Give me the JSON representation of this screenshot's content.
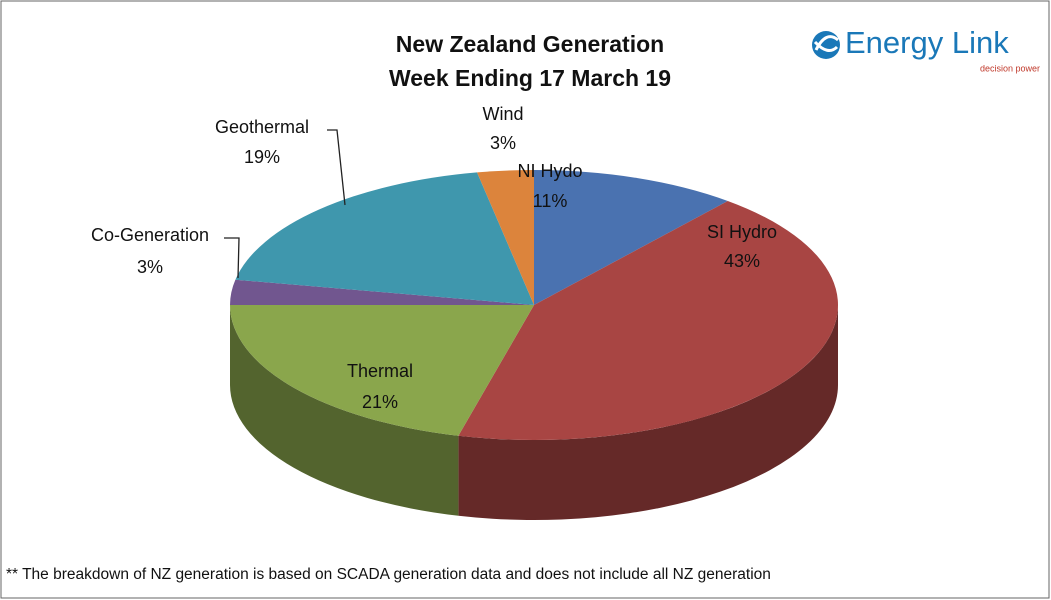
{
  "chart_data": {
    "type": "pie",
    "three_d": true,
    "title": "New Zealand Generation",
    "subtitle": "Week Ending 17 March 19",
    "categories": [
      "NI Hydo",
      "SI Hydro",
      "Thermal",
      "Co-Generation",
      "Geothermal",
      "Wind"
    ],
    "values": [
      11,
      43,
      21,
      3,
      19,
      3
    ],
    "value_labels": [
      "11%",
      "43%",
      "21%",
      "3%",
      "19%",
      "3%"
    ],
    "colors": [
      "#4a72b0",
      "#a84543",
      "#8aa64c",
      "#71568f",
      "#3f97ad",
      "#dc843c"
    ],
    "footnote": "** The breakdown of NZ generation is based on SCADA generation data and does not include all NZ generation"
  },
  "logo": {
    "name": "Energy Link",
    "tagline": "decision power"
  }
}
